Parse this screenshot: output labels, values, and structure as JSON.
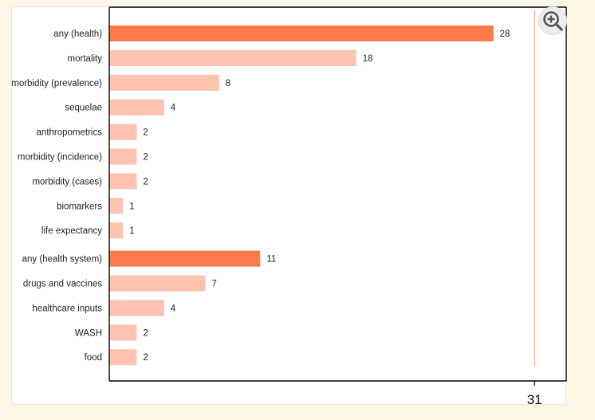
{
  "colors": {
    "highlight": "#ff7a4a",
    "normal": "#ffc3b0",
    "reference_line": "#f4a48a",
    "axis": "#000000"
  },
  "toolbar": {
    "zoom_icon": "zoom-in-icon"
  },
  "chart_data": {
    "type": "bar",
    "orientation": "horizontal",
    "categories": [
      "any (health)",
      "mortality",
      "morbidity (prevalence)",
      "sequelae",
      "anthropometrics",
      "morbidity (incidence)",
      "morbidity (cases)",
      "biomarkers",
      "life expectancy",
      "any (health system)",
      "drugs and vaccines",
      "healthcare inputs",
      "WASH",
      "food"
    ],
    "values": [
      28,
      18,
      8,
      4,
      2,
      2,
      2,
      1,
      1,
      11,
      7,
      4,
      2,
      2
    ],
    "highlighted": [
      true,
      false,
      false,
      false,
      false,
      false,
      false,
      false,
      false,
      true,
      false,
      false,
      false,
      false
    ],
    "groups": [
      {
        "start": 0,
        "end": 8
      },
      {
        "start": 9,
        "end": 13
      }
    ],
    "reference_value": 31,
    "x_ticks": [
      "31"
    ],
    "xlim": [
      0,
      33
    ],
    "title": "",
    "xlabel": "",
    "ylabel": "",
    "grid": false,
    "legend": "none"
  }
}
